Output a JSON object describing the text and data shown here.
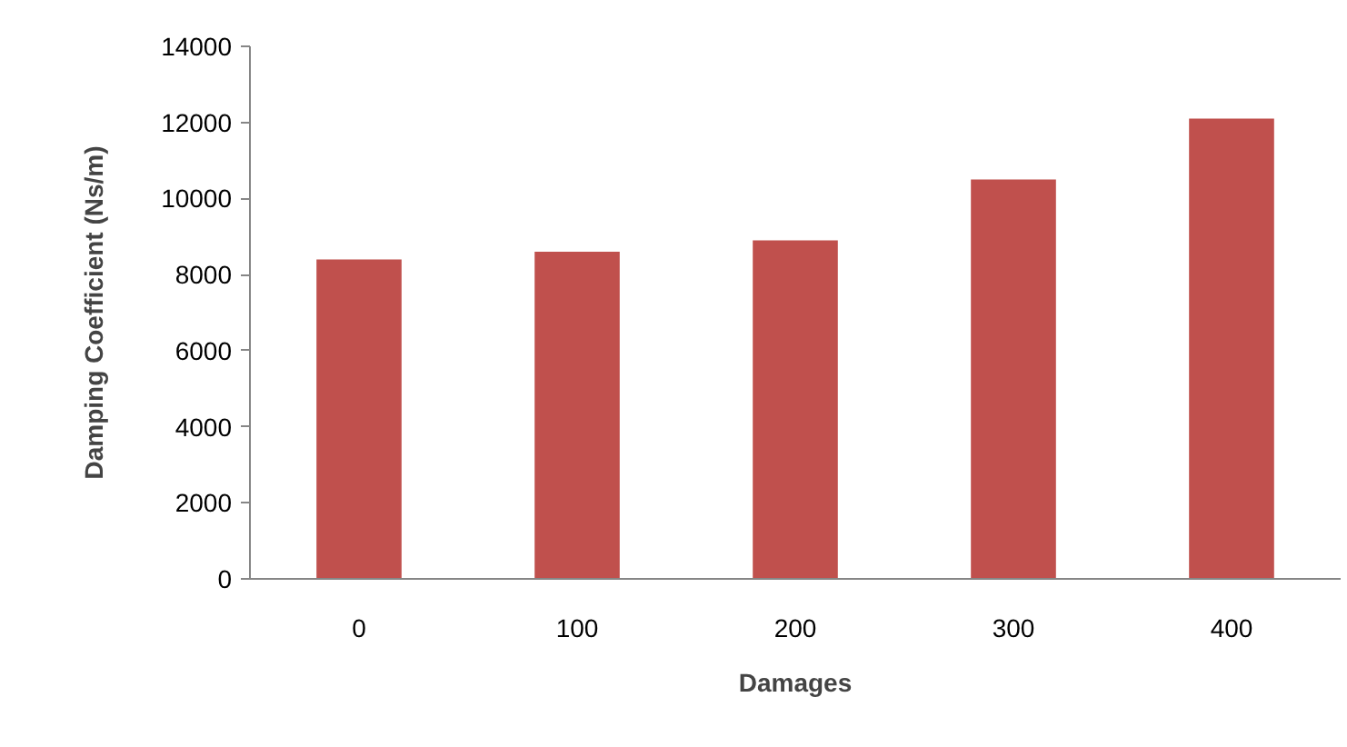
{
  "chart_data": {
    "type": "bar",
    "xlabel": "Damages",
    "ylabel": "Damping Coefficient (Ns/m)",
    "categories": [
      "0",
      "100",
      "200",
      "300",
      "400"
    ],
    "values": [
      8400,
      8600,
      8900,
      10500,
      12100
    ],
    "color": "#c0504d",
    "ylim": [
      0,
      14000
    ],
    "yticks": [
      0,
      2000,
      4000,
      6000,
      8000,
      10000,
      12000,
      14000
    ]
  }
}
